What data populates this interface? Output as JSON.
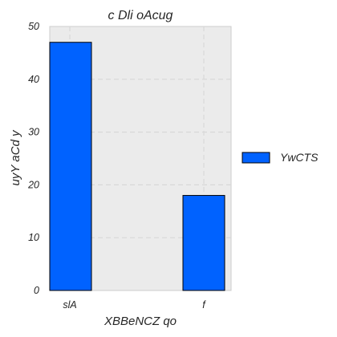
{
  "chart_data": {
    "type": "bar",
    "title": "c Dli oAcug",
    "xlabel": "XBBeNCZ qo",
    "ylabel": "uyY aCd y",
    "categories": [
      "slA",
      "f"
    ],
    "series": [
      {
        "name": "YwCTS",
        "values": [
          47,
          18
        ]
      }
    ],
    "ylim": [
      0,
      50
    ],
    "yticks": [
      0,
      10,
      20,
      30,
      40,
      50
    ],
    "grid": true,
    "legend_position": "right",
    "colors": {
      "bar": "#0062ff",
      "bar_edge": "#000000",
      "plot_bg": "#ebebeb",
      "grid": "#d8d8d8"
    }
  }
}
